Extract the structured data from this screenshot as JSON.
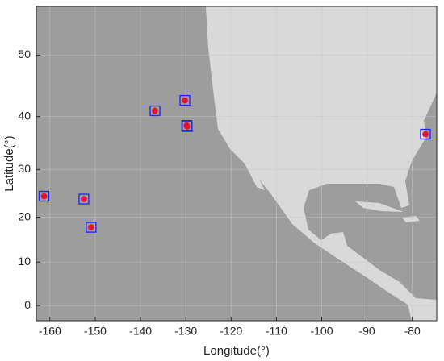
{
  "chart_data": {
    "type": "scatter",
    "projection": "mercator",
    "x_label": "Longitude(°)",
    "y_label": "Latitude(°)",
    "x": [
      -161.3,
      -152.5,
      -150.9,
      -136.8,
      -130.2,
      -129.7,
      -129.8,
      -77.1
    ],
    "values": [
      24.5,
      23.9,
      17.8,
      41.0,
      42.8,
      38.2,
      38.4,
      36.8
    ],
    "color": "#e8112d",
    "edge_color": "#1f1fff",
    "ocean_color": "#9d9d9d",
    "land_color": "#d9d9d9",
    "grid": true,
    "xlim": [
      -163,
      -74.6
    ],
    "ylim": [
      -3.5,
      56.7
    ],
    "xticks": [
      -160,
      -150,
      -140,
      -130,
      -120,
      -110,
      -100,
      -90,
      -80
    ],
    "yticks": [
      0,
      10,
      20,
      30,
      40,
      50
    ]
  }
}
